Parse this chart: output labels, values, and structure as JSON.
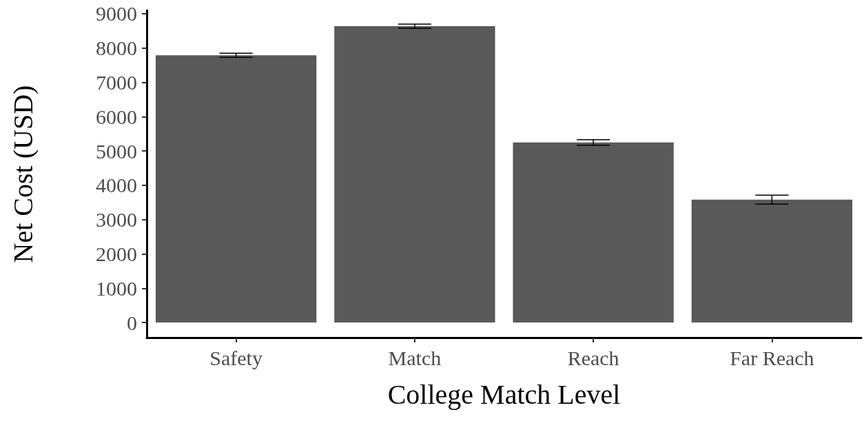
{
  "chart_data": {
    "type": "bar",
    "xlabel": "College Match Level",
    "ylabel": "Net Cost (USD)",
    "categories": [
      "Safety",
      "Match",
      "Reach",
      "Far Reach"
    ],
    "values": [
      7790,
      8640,
      5250,
      3580
    ],
    "errors": [
      60,
      60,
      80,
      130
    ],
    "color": "#595959",
    "ylim": [
      -440,
      9100
    ],
    "yticks": [
      0,
      1000,
      2000,
      3000,
      4000,
      5000,
      6000,
      7000,
      8000,
      9000
    ],
    "grid": false
  }
}
